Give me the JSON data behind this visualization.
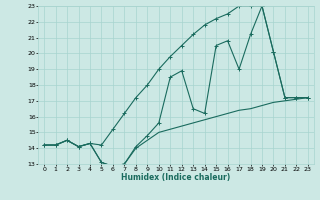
{
  "xlabel": "Humidex (Indice chaleur)",
  "x_values": [
    0,
    1,
    2,
    3,
    4,
    5,
    6,
    7,
    8,
    9,
    10,
    11,
    12,
    13,
    14,
    15,
    16,
    17,
    18,
    19,
    20,
    21,
    22,
    23
  ],
  "main_line": [
    14.2,
    14.2,
    14.5,
    14.1,
    14.3,
    13.1,
    12.85,
    13.0,
    14.1,
    14.8,
    15.6,
    18.5,
    18.9,
    16.5,
    16.2,
    20.5,
    20.8,
    19.0,
    21.2,
    23.0,
    20.1,
    17.2,
    17.2,
    17.2
  ],
  "upper_line": [
    14.2,
    14.2,
    14.5,
    14.1,
    14.3,
    14.2,
    15.2,
    16.2,
    17.2,
    18.0,
    19.0,
    19.8,
    20.5,
    21.2,
    21.8,
    22.2,
    22.5,
    23.0,
    23.0,
    23.0,
    20.1,
    17.2,
    17.2,
    17.2
  ],
  "lower_line": [
    14.2,
    14.2,
    14.5,
    14.1,
    14.3,
    13.1,
    12.85,
    13.0,
    14.0,
    14.5,
    15.0,
    15.2,
    15.4,
    15.6,
    15.8,
    16.0,
    16.2,
    16.4,
    16.5,
    16.7,
    16.9,
    17.0,
    17.1,
    17.2
  ],
  "line_color": "#1a6b5e",
  "bg_color": "#cce8e4",
  "grid_color": "#a8d4cf",
  "ylim": [
    13,
    23
  ],
  "yticks": [
    13,
    14,
    15,
    16,
    17,
    18,
    19,
    20,
    21,
    22,
    23
  ],
  "xlim": [
    -0.5,
    23.5
  ],
  "xticks": [
    0,
    1,
    2,
    3,
    4,
    5,
    6,
    7,
    8,
    9,
    10,
    11,
    12,
    13,
    14,
    15,
    16,
    17,
    18,
    19,
    20,
    21,
    22,
    23
  ]
}
